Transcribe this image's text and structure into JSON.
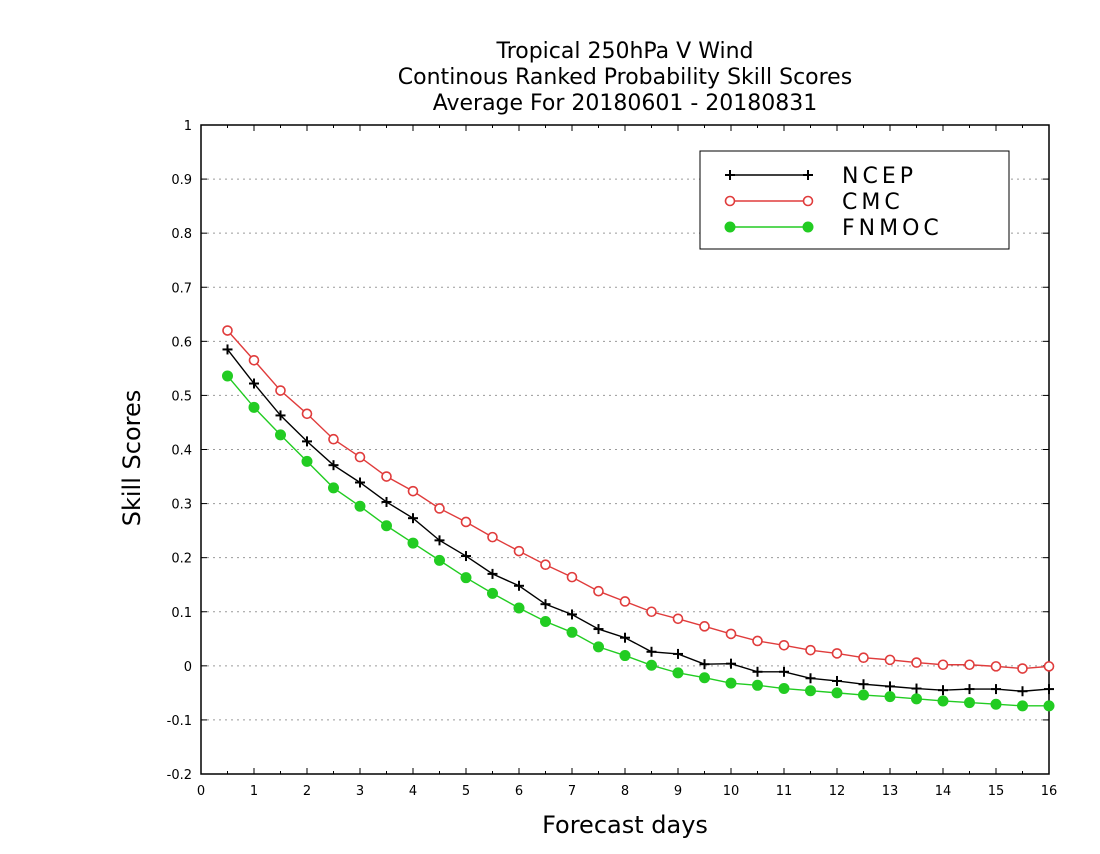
{
  "chart_data": {
    "type": "line",
    "title": [
      "Tropical 250hPa V Wind",
      "Continous Ranked Probability Skill Scores",
      "Average For 20180601 - 20180831"
    ],
    "xlabel": "Forecast days",
    "ylabel": "Skill Scores",
    "xlim": [
      0,
      16
    ],
    "ylim": [
      -0.2,
      1
    ],
    "xticks": [
      0,
      1,
      2,
      3,
      4,
      5,
      6,
      7,
      8,
      9,
      10,
      11,
      12,
      13,
      14,
      15,
      16
    ],
    "xtick_labels": [
      "0",
      "1",
      "2",
      "3",
      "4",
      "5",
      "6",
      "7",
      "8",
      "9",
      "10",
      "11",
      "12",
      "13",
      "14",
      "15",
      "16"
    ],
    "yticks": [
      -0.2,
      -0.1,
      0,
      0.1,
      0.2,
      0.3,
      0.4,
      0.5,
      0.6,
      0.7,
      0.8,
      0.9,
      1
    ],
    "ytick_labels": [
      "-0.2",
      "-0.1",
      "0",
      "0.1",
      "0.2",
      "0.3",
      "0.4",
      "0.5",
      "0.6",
      "0.7",
      "0.8",
      "0.9",
      "1"
    ],
    "grid": "horizontal-dotted",
    "legend_position": "top-right",
    "x": [
      0.5,
      1,
      1.5,
      2,
      2.5,
      3,
      3.5,
      4,
      4.5,
      5,
      5.5,
      6,
      6.5,
      7,
      7.5,
      8,
      8.5,
      9,
      9.5,
      10,
      10.5,
      11,
      11.5,
      12,
      12.5,
      13,
      13.5,
      14,
      14.5,
      15,
      15.5,
      16
    ],
    "series": [
      {
        "name": "NCEP",
        "color": "#000000",
        "marker": "plus",
        "values": [
          0.585,
          0.522,
          0.463,
          0.415,
          0.371,
          0.339,
          0.303,
          0.273,
          0.232,
          0.203,
          0.17,
          0.148,
          0.114,
          0.095,
          0.068,
          0.052,
          0.026,
          0.022,
          0.003,
          0.004,
          -0.011,
          -0.011,
          -0.023,
          -0.028,
          -0.034,
          -0.038,
          -0.042,
          -0.045,
          -0.043,
          -0.043,
          -0.047,
          -0.043
        ]
      },
      {
        "name": "CMC",
        "color": "#e03c3c",
        "marker": "open-circle",
        "values": [
          0.62,
          0.565,
          0.509,
          0.466,
          0.419,
          0.386,
          0.35,
          0.323,
          0.291,
          0.266,
          0.238,
          0.212,
          0.187,
          0.164,
          0.138,
          0.119,
          0.1,
          0.087,
          0.073,
          0.059,
          0.046,
          0.038,
          0.029,
          0.023,
          0.015,
          0.011,
          0.006,
          0.002,
          0.002,
          -0.001,
          -0.005,
          -0.001
        ]
      },
      {
        "name": "FNMOC",
        "color": "#22cc22",
        "marker": "filled-circle",
        "values": [
          0.536,
          0.478,
          0.427,
          0.378,
          0.329,
          0.295,
          0.259,
          0.227,
          0.195,
          0.163,
          0.134,
          0.107,
          0.082,
          0.062,
          0.035,
          0.019,
          0.001,
          -0.013,
          -0.022,
          -0.032,
          -0.036,
          -0.042,
          -0.046,
          -0.05,
          -0.054,
          -0.057,
          -0.061,
          -0.065,
          -0.068,
          -0.071,
          -0.074,
          -0.074
        ]
      }
    ]
  }
}
